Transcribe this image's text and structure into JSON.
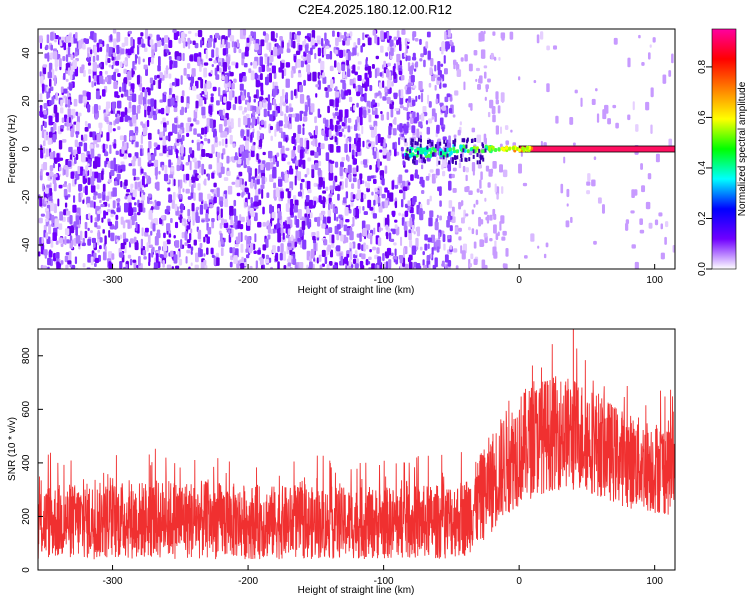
{
  "title": "C2E4.2025.180.12.00.R12",
  "chart_data": [
    {
      "type": "heatmap",
      "xlabel": "Height of straight line (km)",
      "ylabel": "Frequency (Hz)",
      "xlim": [
        -355,
        115
      ],
      "ylim": [
        -50,
        50
      ],
      "xticks": [
        -300,
        -200,
        -100,
        0,
        100
      ],
      "yticks": [
        -40,
        -20,
        0,
        20,
        40
      ],
      "xtick_labels": [
        "-300",
        "-200",
        "-100",
        "0",
        "100"
      ],
      "ytick_labels": [
        "-40",
        "-20",
        "0",
        "20",
        "40"
      ],
      "signal_line": {
        "x_start": 0,
        "x_end": 115,
        "frequency": 0,
        "amplitude": 0.9
      },
      "colorbar": {
        "label": "Normalized spectral amplitude",
        "range": [
          0.0,
          0.95
        ],
        "ticks": [
          0.0,
          0.2,
          0.4,
          0.6,
          0.8
        ],
        "tick_labels": [
          "0.0",
          "0.2",
          "0.4",
          "0.6",
          "0.8"
        ],
        "colors": [
          "#ffffff",
          "#7000ff",
          "#0000ff",
          "#00ffff",
          "#00ff00",
          "#ffff00",
          "#ff8000",
          "#ff0000",
          "#ff00a0"
        ]
      }
    },
    {
      "type": "line",
      "xlabel": "Height of straight line (km)",
      "ylabel": "SNR (10 * v/v)",
      "xlim": [
        -355,
        115
      ],
      "ylim": [
        0,
        900
      ],
      "xticks": [
        -300,
        -200,
        -100,
        0,
        100
      ],
      "yticks": [
        0,
        200,
        400,
        600,
        800
      ],
      "xtick_labels": [
        "-300",
        "-200",
        "-100",
        "0",
        "100"
      ],
      "ytick_labels": [
        "0",
        "200",
        "400",
        "600",
        "800"
      ],
      "color": "#f03030",
      "envelope": [
        {
          "x": -355,
          "low": 40,
          "high": 320
        },
        {
          "x": -300,
          "low": 40,
          "high": 330
        },
        {
          "x": -250,
          "low": 40,
          "high": 340
        },
        {
          "x": -200,
          "low": 40,
          "high": 320
        },
        {
          "x": -150,
          "low": 40,
          "high": 310
        },
        {
          "x": -100,
          "low": 40,
          "high": 310
        },
        {
          "x": -60,
          "low": 40,
          "high": 320
        },
        {
          "x": -40,
          "low": 50,
          "high": 340
        },
        {
          "x": -30,
          "low": 90,
          "high": 420
        },
        {
          "x": -20,
          "low": 140,
          "high": 520
        },
        {
          "x": -10,
          "low": 200,
          "high": 600
        },
        {
          "x": 0,
          "low": 240,
          "high": 660
        },
        {
          "x": 10,
          "low": 270,
          "high": 700
        },
        {
          "x": 20,
          "low": 290,
          "high": 720
        },
        {
          "x": 30,
          "low": 300,
          "high": 730
        },
        {
          "x": 40,
          "low": 300,
          "high": 720
        },
        {
          "x": 50,
          "low": 290,
          "high": 700
        },
        {
          "x": 60,
          "low": 270,
          "high": 660
        },
        {
          "x": 70,
          "low": 250,
          "high": 620
        },
        {
          "x": 80,
          "low": 230,
          "high": 590
        },
        {
          "x": 90,
          "low": 220,
          "high": 570
        },
        {
          "x": 100,
          "low": 210,
          "high": 560
        },
        {
          "x": 115,
          "low": 200,
          "high": 560
        }
      ],
      "max_peak": {
        "x": 40,
        "y": 900
      }
    }
  ]
}
